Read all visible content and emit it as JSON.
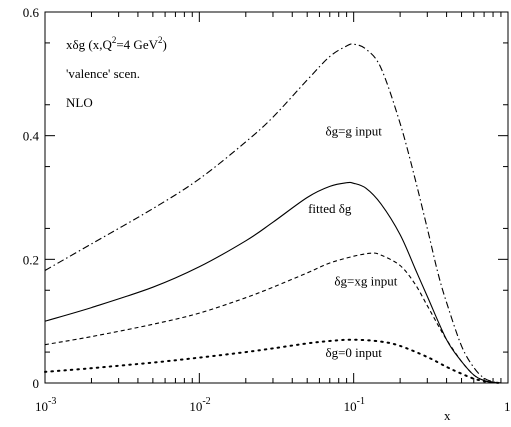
{
  "chart_data": {
    "type": "line",
    "title_lines": [
      {
        "base": "xδg (x,Q",
        "sup": "2",
        "mid": "=4 GeV",
        "sup2": "2",
        "end": ")"
      },
      {
        "base": "'valence'  scen.",
        "sup": "",
        "mid": "",
        "sup2": "",
        "end": ""
      },
      {
        "base": "NLO",
        "sup": "",
        "mid": "",
        "sup2": "",
        "end": ""
      }
    ],
    "xlabel": "x",
    "ylabel": "",
    "x_scale": "log",
    "xlim": [
      0.001,
      1
    ],
    "ylim": [
      0,
      0.6
    ],
    "x_ticks": [
      {
        "value": 0.001,
        "base": "10",
        "exp": "-3"
      },
      {
        "value": 0.01,
        "base": "10",
        "exp": "-2"
      },
      {
        "value": 0.1,
        "base": "10",
        "exp": "-1"
      },
      {
        "value": 1,
        "base": "1",
        "exp": ""
      }
    ],
    "y_ticks": [
      {
        "value": 0,
        "label": "0"
      },
      {
        "value": 0.2,
        "label": "0.2"
      },
      {
        "value": 0.4,
        "label": "0.4"
      },
      {
        "value": 0.6,
        "label": "0.6"
      }
    ],
    "grid": false,
    "legend": "none",
    "series": [
      {
        "label": "δg=g input",
        "style": "dashdot",
        "x": [
          0.001,
          0.002,
          0.005,
          0.01,
          0.02,
          0.03,
          0.05,
          0.07,
          0.09,
          0.1,
          0.12,
          0.15,
          0.2,
          0.25,
          0.3,
          0.35,
          0.4,
          0.5,
          0.6,
          0.7,
          0.8,
          0.9
        ],
        "y": [
          0.182,
          0.225,
          0.282,
          0.33,
          0.39,
          0.43,
          0.49,
          0.528,
          0.545,
          0.548,
          0.54,
          0.51,
          0.42,
          0.33,
          0.25,
          0.18,
          0.13,
          0.06,
          0.025,
          0.008,
          0.002,
          0.0
        ]
      },
      {
        "label": "fitted δg",
        "style": "solid",
        "x": [
          0.001,
          0.002,
          0.005,
          0.01,
          0.02,
          0.03,
          0.05,
          0.07,
          0.09,
          0.1,
          0.12,
          0.15,
          0.2,
          0.25,
          0.3,
          0.4,
          0.5,
          0.6,
          0.7,
          0.8,
          0.9
        ],
        "y": [
          0.1,
          0.122,
          0.155,
          0.188,
          0.23,
          0.26,
          0.3,
          0.318,
          0.324,
          0.323,
          0.315,
          0.29,
          0.24,
          0.185,
          0.14,
          0.07,
          0.035,
          0.013,
          0.004,
          0.001,
          0.0
        ]
      },
      {
        "label": "δg=xg input",
        "style": "dashed",
        "x": [
          0.001,
          0.002,
          0.005,
          0.01,
          0.02,
          0.03,
          0.05,
          0.07,
          0.1,
          0.13,
          0.15,
          0.2,
          0.25,
          0.3,
          0.35,
          0.4,
          0.5,
          0.6,
          0.7,
          0.8,
          0.9
        ],
        "y": [
          0.062,
          0.075,
          0.095,
          0.113,
          0.138,
          0.155,
          0.178,
          0.194,
          0.205,
          0.21,
          0.207,
          0.19,
          0.16,
          0.125,
          0.095,
          0.07,
          0.035,
          0.013,
          0.004,
          0.001,
          0.0
        ]
      },
      {
        "label": "δg=0 input",
        "style": "dotted",
        "x": [
          0.001,
          0.002,
          0.005,
          0.01,
          0.02,
          0.03,
          0.05,
          0.07,
          0.1,
          0.15,
          0.2,
          0.3,
          0.4,
          0.5,
          0.6,
          0.7,
          0.8,
          0.9
        ],
        "y": [
          0.018,
          0.024,
          0.033,
          0.041,
          0.05,
          0.056,
          0.064,
          0.068,
          0.07,
          0.067,
          0.06,
          0.042,
          0.026,
          0.015,
          0.007,
          0.003,
          0.001,
          0.0
        ]
      }
    ],
    "annotations": [
      {
        "label": "δg=g input",
        "x": 0.1,
        "y": 0.4
      },
      {
        "label": "fitted δg",
        "x": 0.07,
        "y": 0.275
      },
      {
        "label": "δg=xg input",
        "x": 0.12,
        "y": 0.158
      },
      {
        "label": "δg=0 input",
        "x": 0.1,
        "y": 0.042
      }
    ]
  }
}
